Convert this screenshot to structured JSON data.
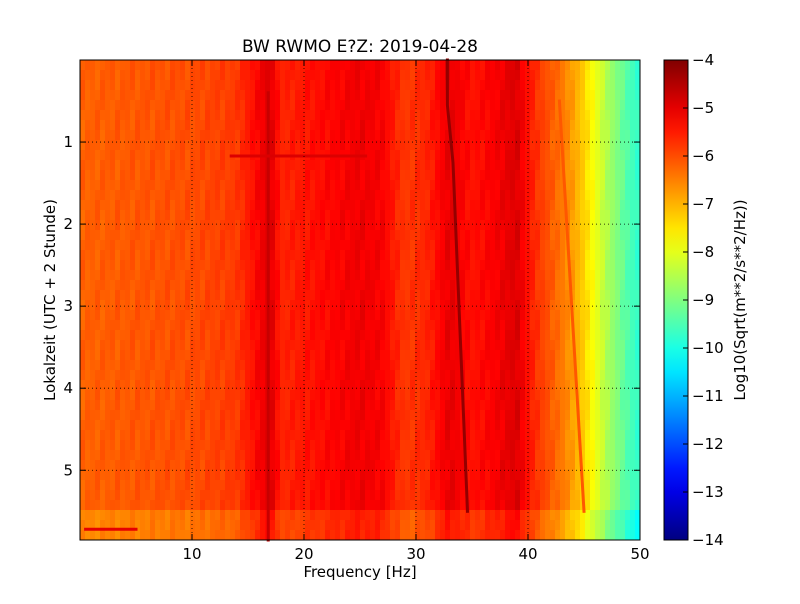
{
  "chart_data": {
    "type": "heatmap",
    "title": "BW RWMO E?Z: 2019-04-28",
    "xlabel": "Frequency [Hz]",
    "ylabel": "Lokalzeit (UTC + 2 Stunde)",
    "xlim": [
      0,
      50
    ],
    "ylim": [
      5.85,
      0
    ],
    "x_ticks": [
      10,
      20,
      30,
      40,
      50
    ],
    "y_ticks": [
      1,
      2,
      3,
      4,
      5
    ],
    "grid": true,
    "colormap": "jet",
    "colorbar": {
      "label": "Log10(Sqrt(m**2/s**2/Hz))",
      "vmin": -14,
      "vmax": -4,
      "ticks": [
        -4,
        -5,
        -6,
        -7,
        -8,
        -9,
        -10,
        -11,
        -12,
        -13,
        -14
      ]
    },
    "frequency_profile_log10": {
      "freq_hz": [
        0,
        5,
        10,
        14,
        16,
        17,
        18,
        22,
        25,
        27,
        29,
        31,
        33,
        35,
        37,
        39,
        40,
        41,
        42,
        43,
        44,
        45,
        46,
        47,
        48,
        49,
        50
      ],
      "value": [
        -6.2,
        -6.1,
        -6.0,
        -5.8,
        -5.2,
        -4.9,
        -5.6,
        -5.3,
        -5.1,
        -5.2,
        -5.8,
        -5.6,
        -5.0,
        -5.4,
        -5.2,
        -4.9,
        -5.4,
        -5.8,
        -6.1,
        -6.4,
        -6.8,
        -7.3,
        -7.9,
        -8.5,
        -9.0,
        -9.5,
        -9.8
      ]
    },
    "features": [
      {
        "type": "line",
        "x": [
          32.8,
          32.8,
          33.3,
          34.6
        ],
        "y": [
          0,
          0.55,
          1.25,
          5.5
        ],
        "value": -4.2
      },
      {
        "type": "line",
        "x": [
          16.8,
          16.8
        ],
        "y": [
          0.4,
          5.85
        ],
        "value": -4.7
      },
      {
        "type": "line",
        "x": [
          42.8,
          45.0
        ],
        "y": [
          0.5,
          5.5
        ],
        "value": -6.1
      },
      {
        "type": "line",
        "x": [
          13.5,
          25.5
        ],
        "y": [
          1.17,
          1.17
        ],
        "value": -4.9
      },
      {
        "type": "line",
        "x": [
          0.5,
          5.0
        ],
        "y": [
          5.72,
          5.72
        ],
        "value": -5.0
      },
      {
        "type": "band",
        "y": [
          5.5,
          5.85
        ],
        "offset": -0.4
      }
    ]
  }
}
